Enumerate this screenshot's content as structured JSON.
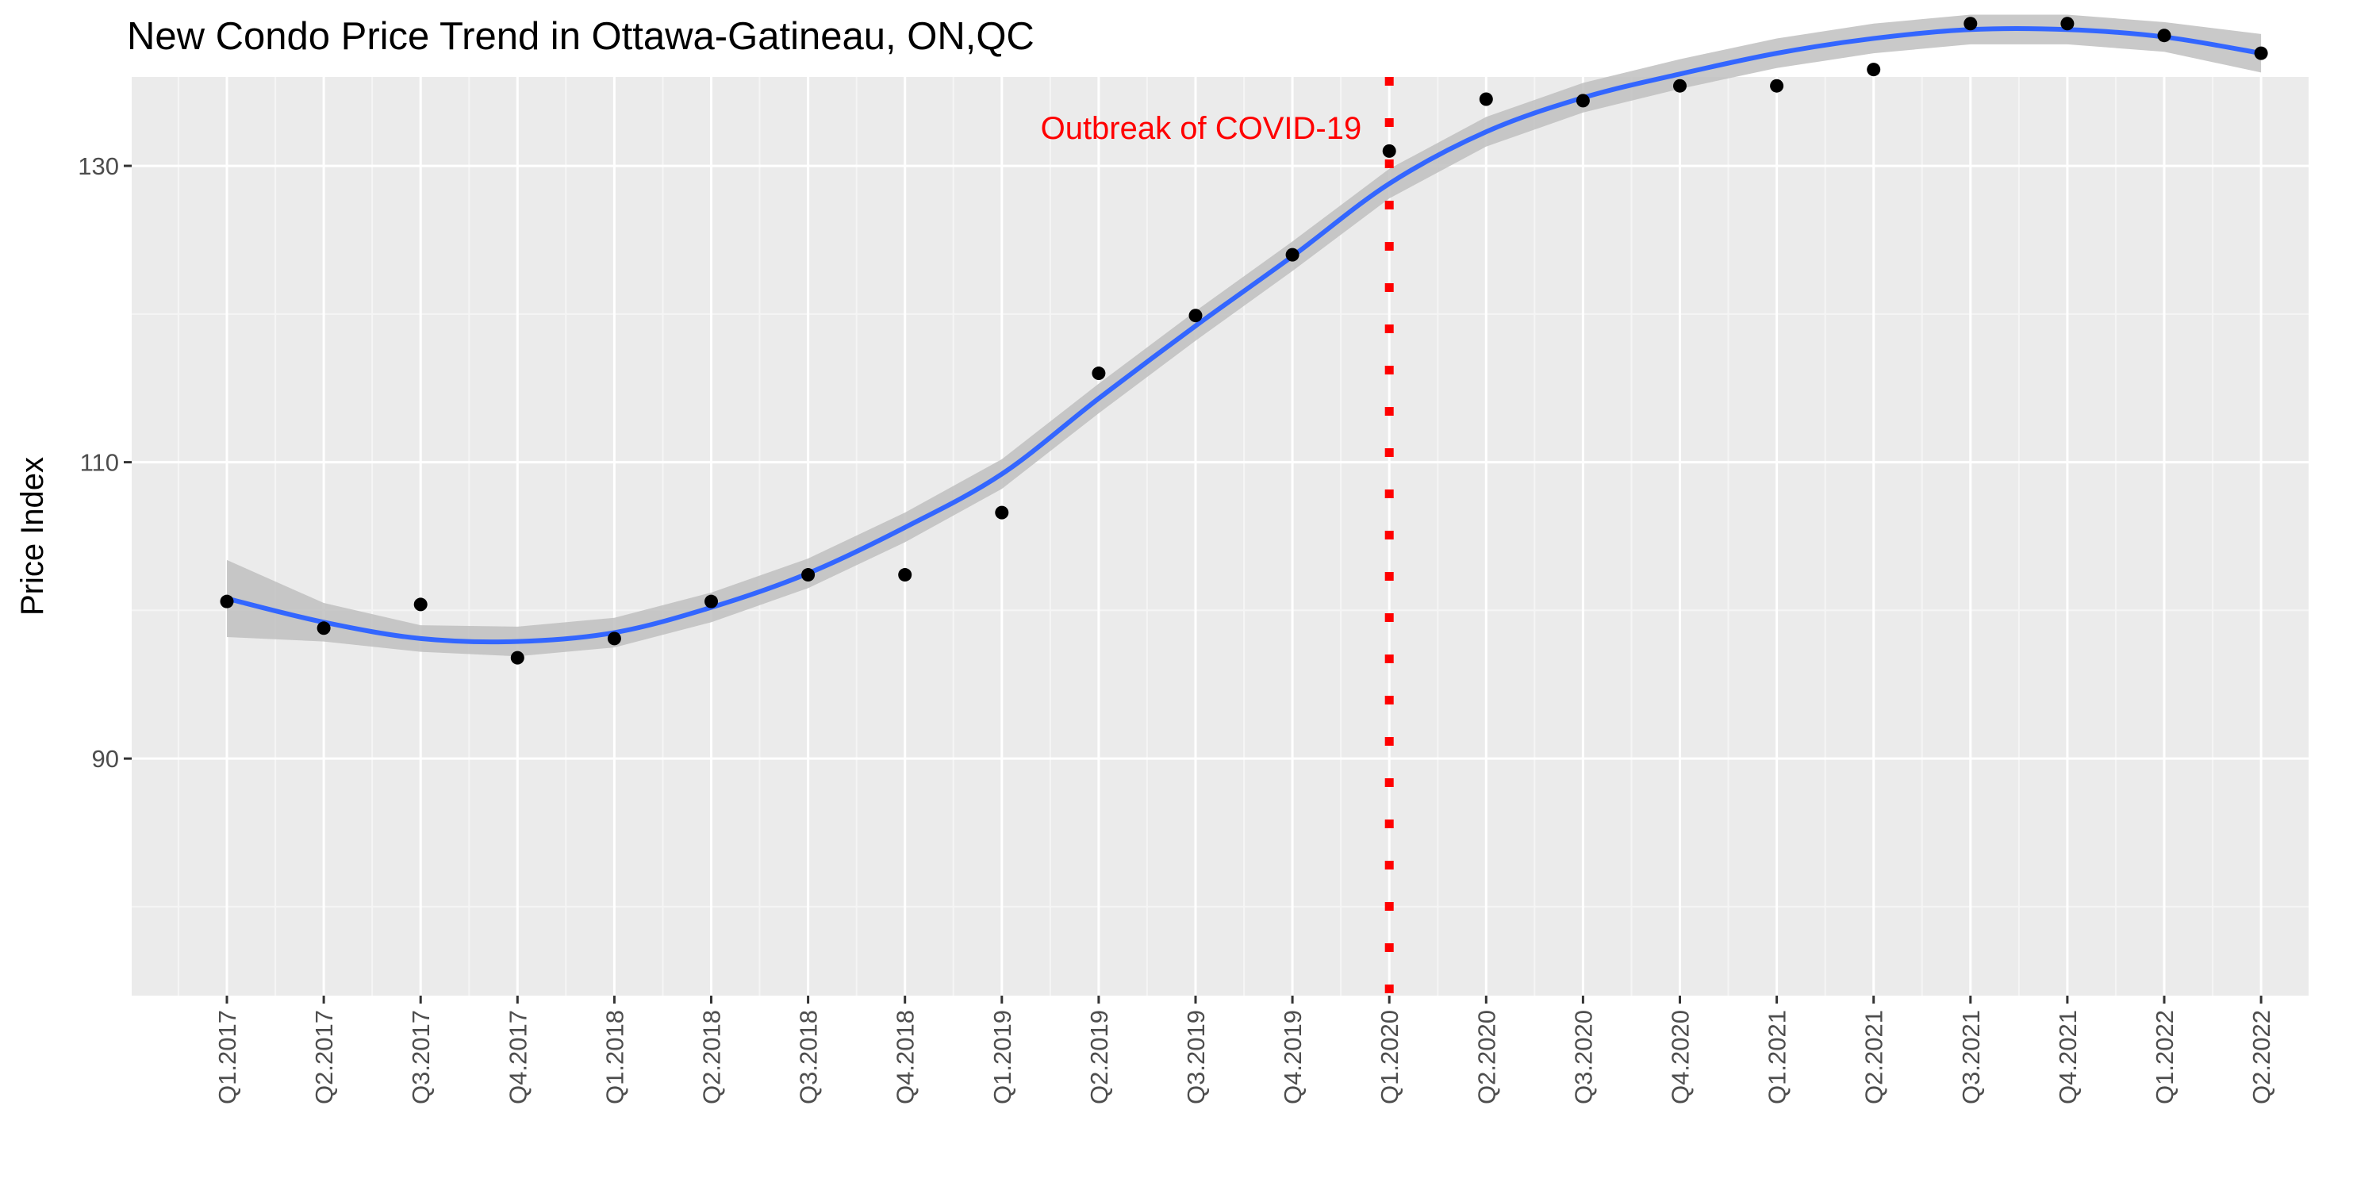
{
  "chart_data": {
    "type": "scatter",
    "title": "New Condo Price Trend in Ottawa-Gatineau, ON,QC",
    "xlabel": "",
    "ylabel": "Price Index",
    "ylim": [
      74,
      136
    ],
    "yticks": [
      90,
      110,
      130
    ],
    "grid": true,
    "categories": [
      "Q1.2017",
      "Q2.2017",
      "Q3.2017",
      "Q4.2017",
      "Q1.2018",
      "Q2.2018",
      "Q3.2018",
      "Q4.2018",
      "Q1.2019",
      "Q2.2019",
      "Q3.2019",
      "Q4.2019",
      "Q1.2020",
      "Q2.2020",
      "Q3.2020",
      "Q4.2020",
      "Q1.2021",
      "Q2.2021",
      "Q3.2021",
      "Q4.2021",
      "Q1.2022",
      "Q2.2022"
    ],
    "series": [
      {
        "kind": "points",
        "values": [
          100.6,
          98.8,
          100.4,
          96.8,
          98.1,
          100.6,
          102.4,
          102.4,
          106.6,
          116.0,
          119.9,
          124.0,
          131.0,
          134.5,
          134.4,
          135.4,
          135.4,
          136.5,
          139.6,
          139.6,
          138.8,
          137.6
        ],
        "color": "#000000"
      },
      {
        "kind": "smooth",
        "values": [
          100.8,
          99.2,
          98.1,
          97.9,
          98.5,
          100.2,
          102.5,
          105.6,
          109.2,
          114.3,
          119.2,
          123.9,
          128.8,
          132.3,
          134.6,
          136.2,
          137.6,
          138.6,
          139.2,
          139.2,
          138.7,
          137.6
        ],
        "band_halfwidth": [
          2.6,
          1.3,
          0.9,
          1.0,
          1.0,
          1.0,
          1.0,
          1.0,
          1.0,
          1.0,
          1.0,
          1.0,
          1.0,
          1.0,
          1.0,
          1.0,
          1.0,
          1.0,
          1.0,
          1.0,
          1.0,
          1.3
        ],
        "color": "#3366ff",
        "band_color": "#bfbfbf"
      }
    ],
    "annotations": [
      {
        "type": "vline",
        "x": "Q1.2020",
        "style": "dotted",
        "color": "#ff0000"
      },
      {
        "type": "text",
        "x": "Q1.2020",
        "text": "Outbreak of COVID-19",
        "color": "#ff0000",
        "anchor": "end"
      }
    ],
    "colors": {
      "panel_bg": "#ebebeb",
      "grid_major": "#ffffff",
      "grid_minor": "#f5f5f5"
    }
  }
}
